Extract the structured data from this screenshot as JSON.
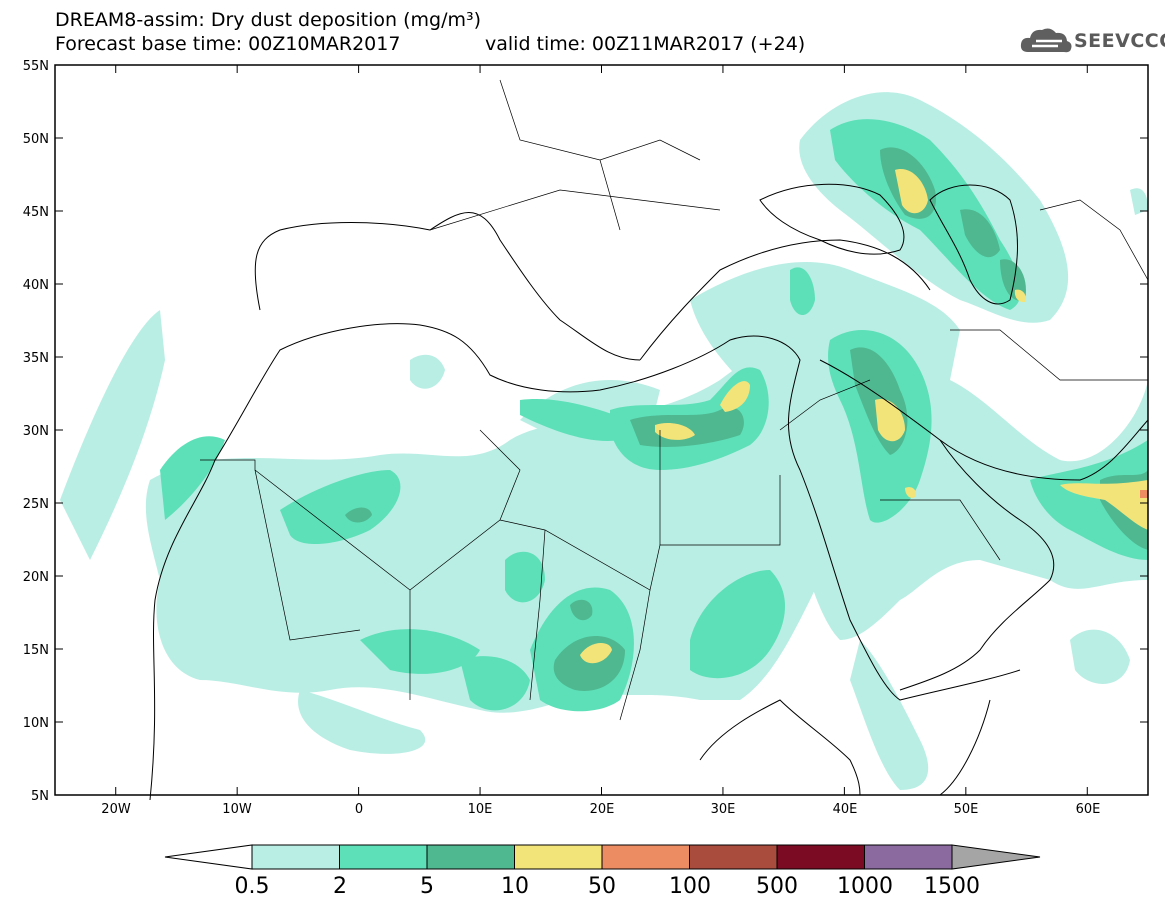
{
  "header": {
    "title_line1": "DREAM8-assim: Dry dust deposition (mg/m³)",
    "forecast_base": "Forecast base time: 00Z10MAR2017",
    "valid_time": "valid time: 00Z11MAR2017 (+24)",
    "logo_text": "SEEVCCC"
  },
  "map": {
    "lon_range": [
      -25,
      65
    ],
    "lat_range": [
      5,
      55
    ],
    "lat_labels": [
      "55N",
      "50N",
      "45N",
      "40N",
      "35N",
      "30N",
      "25N",
      "20N",
      "15N",
      "10N",
      "5N"
    ],
    "lon_labels": [
      "20W",
      "10W",
      "0",
      "10E",
      "20E",
      "30E",
      "40E",
      "50E",
      "60E"
    ]
  },
  "colorbar": {
    "labels": [
      "0.5",
      "2",
      "5",
      "10",
      "50",
      "100",
      "500",
      "1000",
      "1500"
    ],
    "colors": [
      "#b9eee4",
      "#5de0b8",
      "#4fb891",
      "#f3e47a",
      "#eb8c63",
      "#a94c3e",
      "#7a0b22",
      "#8a6a9f",
      "#a5a5a5"
    ]
  }
}
